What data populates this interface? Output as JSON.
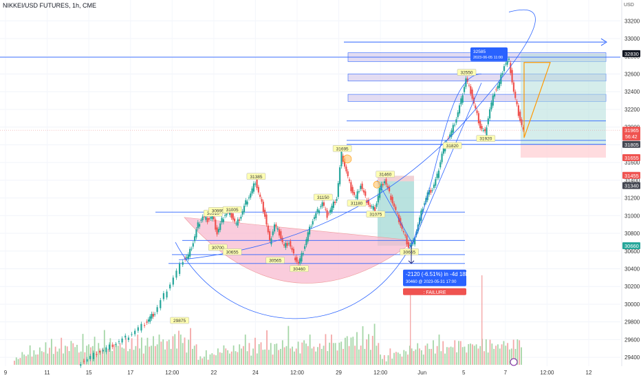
{
  "header": {
    "symbol": "NIKKEI/USD FUTURES, 1h, CME",
    "currency": "USD"
  },
  "colors": {
    "up": "#26a69a",
    "down": "#ef5350",
    "vol_up": "#a5d6a7",
    "vol_down": "#f4a7a7",
    "line": "#2962ff",
    "tag_bg": "#ffffb3",
    "zone_purple": "#d1c4e9",
    "pink": "#f8bbd0"
  },
  "chart_data": {
    "type": "line",
    "title": "NIKKEI/USD FUTURES, 1h, CME",
    "ylim": [
      29300,
      33420
    ],
    "y_ticks": [
      29400,
      29600,
      29800,
      30000,
      30200,
      30400,
      30600,
      30800,
      31000,
      31200,
      31400,
      31600,
      31800,
      32000,
      32200,
      32400,
      32600,
      32800,
      33000,
      33200
    ],
    "x_ticks": [
      "9",
      "11",
      "15",
      "17",
      "12:00",
      "22",
      "24",
      "12:00",
      "29",
      "12:00",
      "Jun",
      "5",
      "7",
      "12:00",
      "12"
    ],
    "price_path": [
      [
        0,
        29330
      ],
      [
        2,
        29380
      ],
      [
        4,
        29450
      ],
      [
        6,
        29500
      ],
      [
        8,
        29560
      ],
      [
        10,
        29620
      ],
      [
        12,
        29700
      ],
      [
        14,
        29780
      ],
      [
        15,
        29850
      ],
      [
        16,
        29900
      ],
      [
        18,
        30100
      ],
      [
        20,
        30300
      ],
      [
        22,
        30500
      ],
      [
        23,
        30550
      ],
      [
        24,
        30700
      ],
      [
        25,
        30900
      ],
      [
        26,
        30990
      ],
      [
        27,
        30950
      ],
      [
        28,
        31000
      ],
      [
        29,
        30800
      ],
      [
        30,
        30950
      ],
      [
        31,
        31050
      ],
      [
        32,
        31000
      ],
      [
        33,
        30900
      ],
      [
        34,
        31000
      ],
      [
        35,
        31150
      ],
      [
        36,
        31250
      ],
      [
        37,
        31385
      ],
      [
        38,
        31200
      ],
      [
        39,
        31000
      ],
      [
        40,
        30700
      ],
      [
        41,
        30900
      ],
      [
        42,
        30800
      ],
      [
        43,
        30650
      ],
      [
        44,
        30700
      ],
      [
        45,
        30550
      ],
      [
        46,
        30460
      ],
      [
        47,
        30600
      ],
      [
        48,
        30800
      ],
      [
        49,
        30950
      ],
      [
        50,
        31050
      ],
      [
        51,
        31150
      ],
      [
        52,
        31000
      ],
      [
        53,
        31100
      ],
      [
        54,
        31200
      ],
      [
        55,
        31700
      ],
      [
        56,
        31500
      ],
      [
        57,
        31300
      ],
      [
        58,
        31200
      ],
      [
        59,
        31350
      ],
      [
        60,
        31200
      ],
      [
        61,
        31100
      ],
      [
        62,
        31075
      ],
      [
        63,
        31300
      ],
      [
        64,
        31400
      ],
      [
        65,
        31250
      ],
      [
        66,
        31100
      ],
      [
        67,
        30950
      ],
      [
        68,
        30800
      ],
      [
        69,
        30650
      ],
      [
        70,
        30700
      ],
      [
        71,
        30900
      ],
      [
        72,
        31100
      ],
      [
        73,
        31250
      ],
      [
        74,
        31300
      ],
      [
        75,
        31450
      ],
      [
        76,
        31700
      ],
      [
        77,
        31850
      ],
      [
        78,
        31950
      ],
      [
        79,
        32100
      ],
      [
        80,
        32300
      ],
      [
        81,
        32550
      ],
      [
        82,
        32400
      ],
      [
        83,
        32200
      ],
      [
        84,
        32000
      ],
      [
        85,
        31930
      ],
      [
        86,
        32200
      ],
      [
        87,
        32400
      ],
      [
        88,
        32500
      ],
      [
        89,
        32700
      ],
      [
        90,
        32750
      ],
      [
        91,
        32400
      ],
      [
        92,
        32150
      ],
      [
        93,
        31960
      ]
    ],
    "key_levels": [
      30460,
      30560,
      30680,
      30720,
      31040,
      31805,
      31850,
      32070,
      32330,
      32560,
      32790
    ],
    "swing_labels": [
      {
        "text": "29875",
        "x": 21,
        "y": 29875,
        "pos": "below"
      },
      {
        "text": "30910",
        "x": 28,
        "y": 30970,
        "pos": "above"
      },
      {
        "text": "30995",
        "x": 29,
        "y": 31000,
        "pos": "above"
      },
      {
        "text": "31005",
        "x": 32,
        "y": 31010,
        "pos": "above"
      },
      {
        "text": "30700",
        "x": 29,
        "y": 30700,
        "pos": "below"
      },
      {
        "text": "30655",
        "x": 32,
        "y": 30650,
        "pos": "below"
      },
      {
        "text": "31385",
        "x": 37,
        "y": 31385,
        "pos": "above"
      },
      {
        "text": "30565",
        "x": 41,
        "y": 30555,
        "pos": "below"
      },
      {
        "text": "30460",
        "x": 46,
        "y": 30460,
        "pos": "below"
      },
      {
        "text": "31150",
        "x": 51,
        "y": 31150,
        "pos": "above"
      },
      {
        "text": "31695",
        "x": 55,
        "y": 31700,
        "pos": "above"
      },
      {
        "text": "31180",
        "x": 58,
        "y": 31200,
        "pos": "below"
      },
      {
        "text": "31460",
        "x": 64,
        "y": 31410,
        "pos": "above"
      },
      {
        "text": "31075",
        "x": 62,
        "y": 31075,
        "pos": "below"
      },
      {
        "text": "30665",
        "x": 69,
        "y": 30650,
        "pos": "below"
      },
      {
        "text": "31820",
        "x": 78,
        "y": 31850,
        "pos": "below"
      },
      {
        "text": "32550",
        "x": 81,
        "y": 32560,
        "pos": "above"
      },
      {
        "text": "31920",
        "x": 85,
        "y": 31930,
        "pos": "below"
      }
    ],
    "tooltip": {
      "price": "32585",
      "time": "2023-06-05 11:00"
    },
    "measure": {
      "line1": "-2120 (-6.51%) in -4d 18h",
      "line2": "30460 @ 2023-05-31  17:00",
      "failure": ": FAILURE"
    },
    "price_labels": [
      {
        "text": "32830",
        "y": 32830,
        "bg": "#131722",
        "fg": "#ffffff"
      },
      {
        "text": "31965",
        "y": 31965,
        "bg": "#ef5350",
        "fg": "#ffffff",
        "sub": "56:42"
      },
      {
        "text": "31805",
        "y": 31805,
        "bg": "#434651",
        "fg": "#ffffff"
      },
      {
        "text": "31655",
        "y": 31655,
        "bg": "#ef5350",
        "fg": "#ffffff"
      },
      {
        "text": "31455",
        "y": 31455,
        "bg": "#ef5350",
        "fg": "#ffffff"
      },
      {
        "text": "31340",
        "y": 31340,
        "bg": "#434651",
        "fg": "#ffffff"
      },
      {
        "text": "30660",
        "y": 30660,
        "bg": "#26a69a",
        "fg": "#ffffff"
      }
    ],
    "volume_relative": [
      0.2,
      0.25,
      0.15,
      0.3,
      0.4,
      0.25,
      0.35,
      0.3,
      0.45,
      0.3,
      0.4,
      0.5,
      0.35,
      0.45,
      0.6,
      0.4,
      0.55,
      0.45,
      0.5,
      0.6,
      0.4,
      0.5,
      0.65,
      0.55,
      0.7,
      0.5,
      0.6,
      0.45,
      0.55,
      0.7,
      0.5,
      0.65,
      0.55,
      0.6,
      0.45,
      0.8,
      0.55,
      0.6,
      0.5,
      0.7,
      0.55,
      0.65,
      0.5,
      0.6,
      0.7,
      0.55,
      0.9,
      0.6,
      0.5,
      0.65,
      0.55,
      0.6,
      0.5,
      0.7,
      0.6,
      0.85,
      0.55,
      0.7,
      0.6,
      0.5,
      0.65,
      0.6,
      0.55,
      0.7,
      0.6,
      0.75,
      0.55,
      0.65,
      0.7,
      0.8,
      0.6,
      0.7,
      0.75,
      0.6,
      0.7,
      0.85,
      0.7,
      0.75,
      0.8,
      0.65,
      0.7,
      0.9,
      0.75,
      0.65,
      1.0,
      0.7,
      0.8,
      0.75,
      0.6,
      0.85,
      0.95,
      0.7,
      0.6,
      0.5
    ]
  }
}
